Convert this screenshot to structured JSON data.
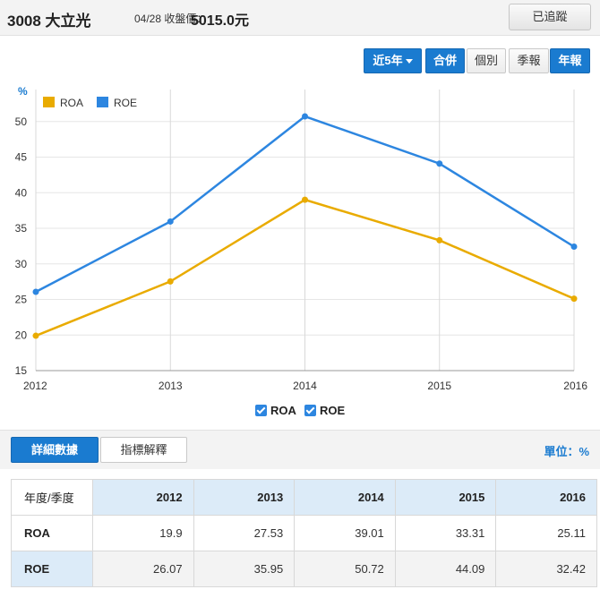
{
  "header": {
    "title": "3008 大立光",
    "date_label": "04/28 收盤價：",
    "price": "5015.0元",
    "track_button": "已追蹤"
  },
  "controls": {
    "period": "近5年",
    "consolidated": "合併",
    "individual": "個別",
    "quarterly": "季報",
    "annual": "年報"
  },
  "legend_checks": [
    "ROA",
    "ROE"
  ],
  "tabs": {
    "detail": "詳細數據",
    "explain": "指標解釋",
    "unit": "單位：%"
  },
  "table": {
    "corner": "年度/季度",
    "columns": [
      "2012",
      "2013",
      "2014",
      "2015",
      "2016"
    ],
    "rows": [
      {
        "label": "ROA",
        "values": [
          "19.9",
          "27.53",
          "39.01",
          "33.31",
          "25.11"
        ]
      },
      {
        "label": "ROE",
        "values": [
          "26.07",
          "35.95",
          "50.72",
          "44.09",
          "32.42"
        ]
      }
    ]
  },
  "chart_data": {
    "type": "line",
    "ylabel": "%",
    "x": [
      "2012",
      "2013",
      "2014",
      "2015",
      "2016"
    ],
    "ylim": [
      15,
      55
    ],
    "yticks": [
      15,
      20,
      25,
      30,
      35,
      40,
      45,
      50
    ],
    "grid": "vertical",
    "legend_position": "top-left",
    "series": [
      {
        "name": "ROA",
        "color": "#e9ab00",
        "values": [
          19.9,
          27.53,
          39.01,
          33.31,
          25.11
        ]
      },
      {
        "name": "ROE",
        "color": "#2d86e0",
        "values": [
          26.07,
          35.95,
          50.72,
          44.09,
          32.42
        ]
      }
    ]
  }
}
